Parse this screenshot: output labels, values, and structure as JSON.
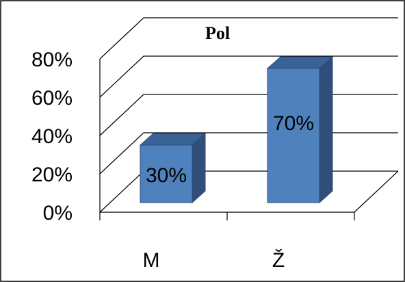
{
  "chart_data": {
    "type": "bar",
    "style": "3d-column",
    "title": "Pol",
    "categories": [
      "M",
      "Ž"
    ],
    "values": [
      30,
      70
    ],
    "data_labels": [
      "30%",
      "70%"
    ],
    "ylim": [
      0,
      80
    ],
    "yticks": [
      0,
      20,
      40,
      60,
      80
    ],
    "ytick_labels": [
      "0%",
      "20%",
      "40%",
      "60%",
      "80%"
    ],
    "grid": true,
    "legend": "none",
    "colors": {
      "bar_front": "#4F81BD",
      "bar_top": "#3A6296",
      "bar_side": "#2F4F7A",
      "bar_edge": "#2C4C78"
    }
  }
}
